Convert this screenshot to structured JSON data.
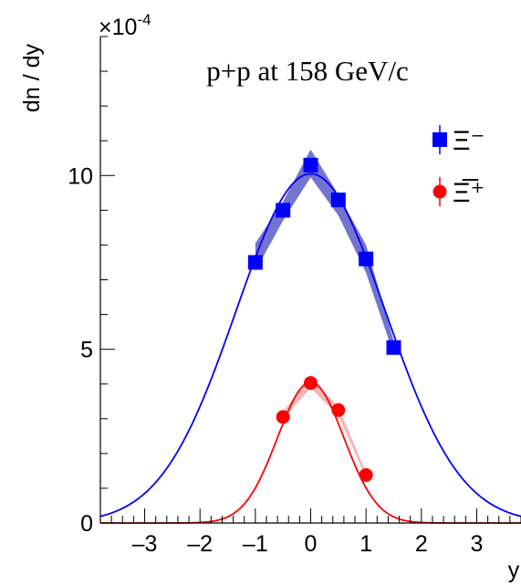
{
  "chart_data": {
    "type": "line",
    "title": "p+p at 158 GeV/c",
    "xlabel": "y",
    "ylabel": "dn / dy",
    "y_multiplier": "×10",
    "y_multiplier_exp": "-4",
    "xlim": [
      -3.8,
      3.8
    ],
    "ylim": [
      0,
      14
    ],
    "xticks": [
      -3,
      -2,
      -1,
      0,
      1,
      2,
      3
    ],
    "xtick_labels": [
      "–3",
      "–2",
      "–1",
      "0",
      "1",
      "2",
      "3"
    ],
    "yticks": [
      0,
      5,
      10
    ],
    "ytick_labels": [
      "0",
      "5",
      "10"
    ],
    "legend_position": "top-right",
    "series": [
      {
        "name": "Ξ⁻",
        "color": "#0000ff",
        "band_color": "#5b5bc8",
        "marker": "square",
        "x": [
          -1.0,
          -0.5,
          0.0,
          0.5,
          1.0,
          1.5
        ],
        "y": [
          7.5,
          9.0,
          10.3,
          9.3,
          7.6,
          5.05
        ],
        "band_lo": [
          7.25,
          8.7,
          9.95,
          8.85,
          7.2,
          4.85
        ],
        "band_hi": [
          8.05,
          9.25,
          10.75,
          9.45,
          8.0,
          5.25
        ],
        "fit": {
          "amplitude": 10.05,
          "mean": 0.0,
          "sigma": 1.35
        }
      },
      {
        "name": "Ξ̅⁺",
        "color": "#ff0000",
        "band_color": "#f4a0a0",
        "marker": "circle",
        "x": [
          -0.5,
          0.0,
          0.5,
          1.0
        ],
        "y": [
          3.05,
          4.03,
          3.25,
          1.38
        ],
        "band_lo": [
          3.0,
          3.88,
          3.08,
          1.3
        ],
        "band_hi": [
          3.22,
          4.18,
          3.35,
          1.46
        ],
        "fit": {
          "amplitude": 4.05,
          "mean": 0.0,
          "sigma": 0.6
        }
      }
    ]
  }
}
